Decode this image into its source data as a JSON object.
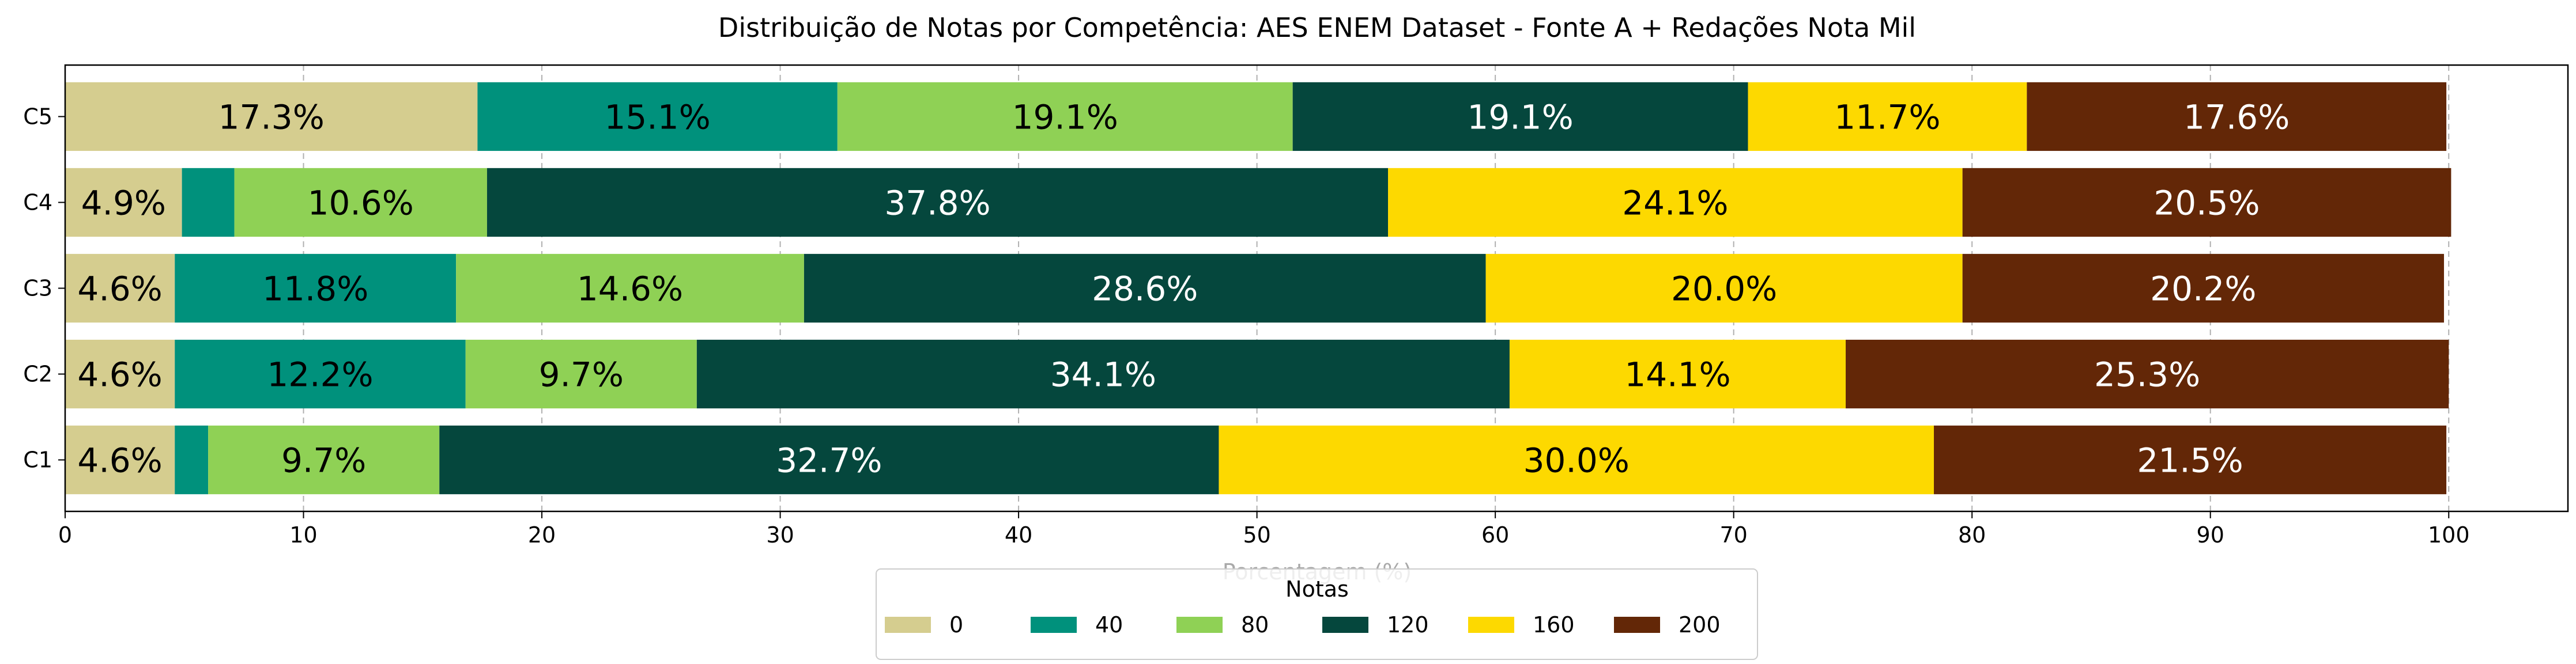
{
  "chart_data": {
    "type": "bar",
    "orientation": "horizontal",
    "stacked": true,
    "title": "Distribuição de Notas por Competência: AES ENEM Dataset - Fonte A + Redações  Nota Mil",
    "xlabel": "Porcentagem (%)",
    "ylabel": "",
    "xlim": [
      0,
      105
    ],
    "xticks": [
      0,
      10,
      20,
      30,
      40,
      50,
      60,
      70,
      80,
      90,
      100
    ],
    "grid": "vertical dashed",
    "categories": [
      "C1",
      "C2",
      "C3",
      "C4",
      "C5"
    ],
    "legend": {
      "title": "Notas",
      "placement": "bottom-center"
    },
    "series": [
      {
        "name": "0",
        "color": "#d5cd8f",
        "label_color": "#000000",
        "values": [
          4.6,
          4.6,
          4.6,
          4.9,
          17.3
        ],
        "labels": [
          "4.6%",
          "4.6%",
          "4.6%",
          "4.9%",
          "17.3%"
        ]
      },
      {
        "name": "40",
        "color": "#00917c",
        "label_color": "#000000",
        "values": [
          1.4,
          12.2,
          11.8,
          2.2,
          15.1
        ],
        "labels": [
          "",
          "12.2%",
          "11.8%",
          "",
          "15.1%"
        ]
      },
      {
        "name": "80",
        "color": "#8fd155",
        "label_color": "#000000",
        "values": [
          9.7,
          9.7,
          14.6,
          10.6,
          19.1
        ],
        "labels": [
          "9.7%",
          "9.7%",
          "14.6%",
          "10.6%",
          "19.1%"
        ]
      },
      {
        "name": "120",
        "color": "#05473d",
        "label_color": "#ffffff",
        "values": [
          32.7,
          34.1,
          28.6,
          37.8,
          19.1
        ],
        "labels": [
          "32.7%",
          "34.1%",
          "28.6%",
          "37.8%",
          "19.1%"
        ]
      },
      {
        "name": "160",
        "color": "#fdd900",
        "label_color": "#000000",
        "values": [
          30.0,
          14.1,
          20.0,
          24.1,
          11.7
        ],
        "labels": [
          "30.0%",
          "14.1%",
          "20.0%",
          "24.1%",
          "11.7%"
        ]
      },
      {
        "name": "200",
        "color": "#632707",
        "label_color": "#ffffff",
        "values": [
          21.5,
          25.3,
          20.2,
          20.5,
          17.6
        ],
        "labels": [
          "21.5%",
          "25.3%",
          "20.2%",
          "20.5%",
          "17.6%"
        ]
      }
    ]
  }
}
